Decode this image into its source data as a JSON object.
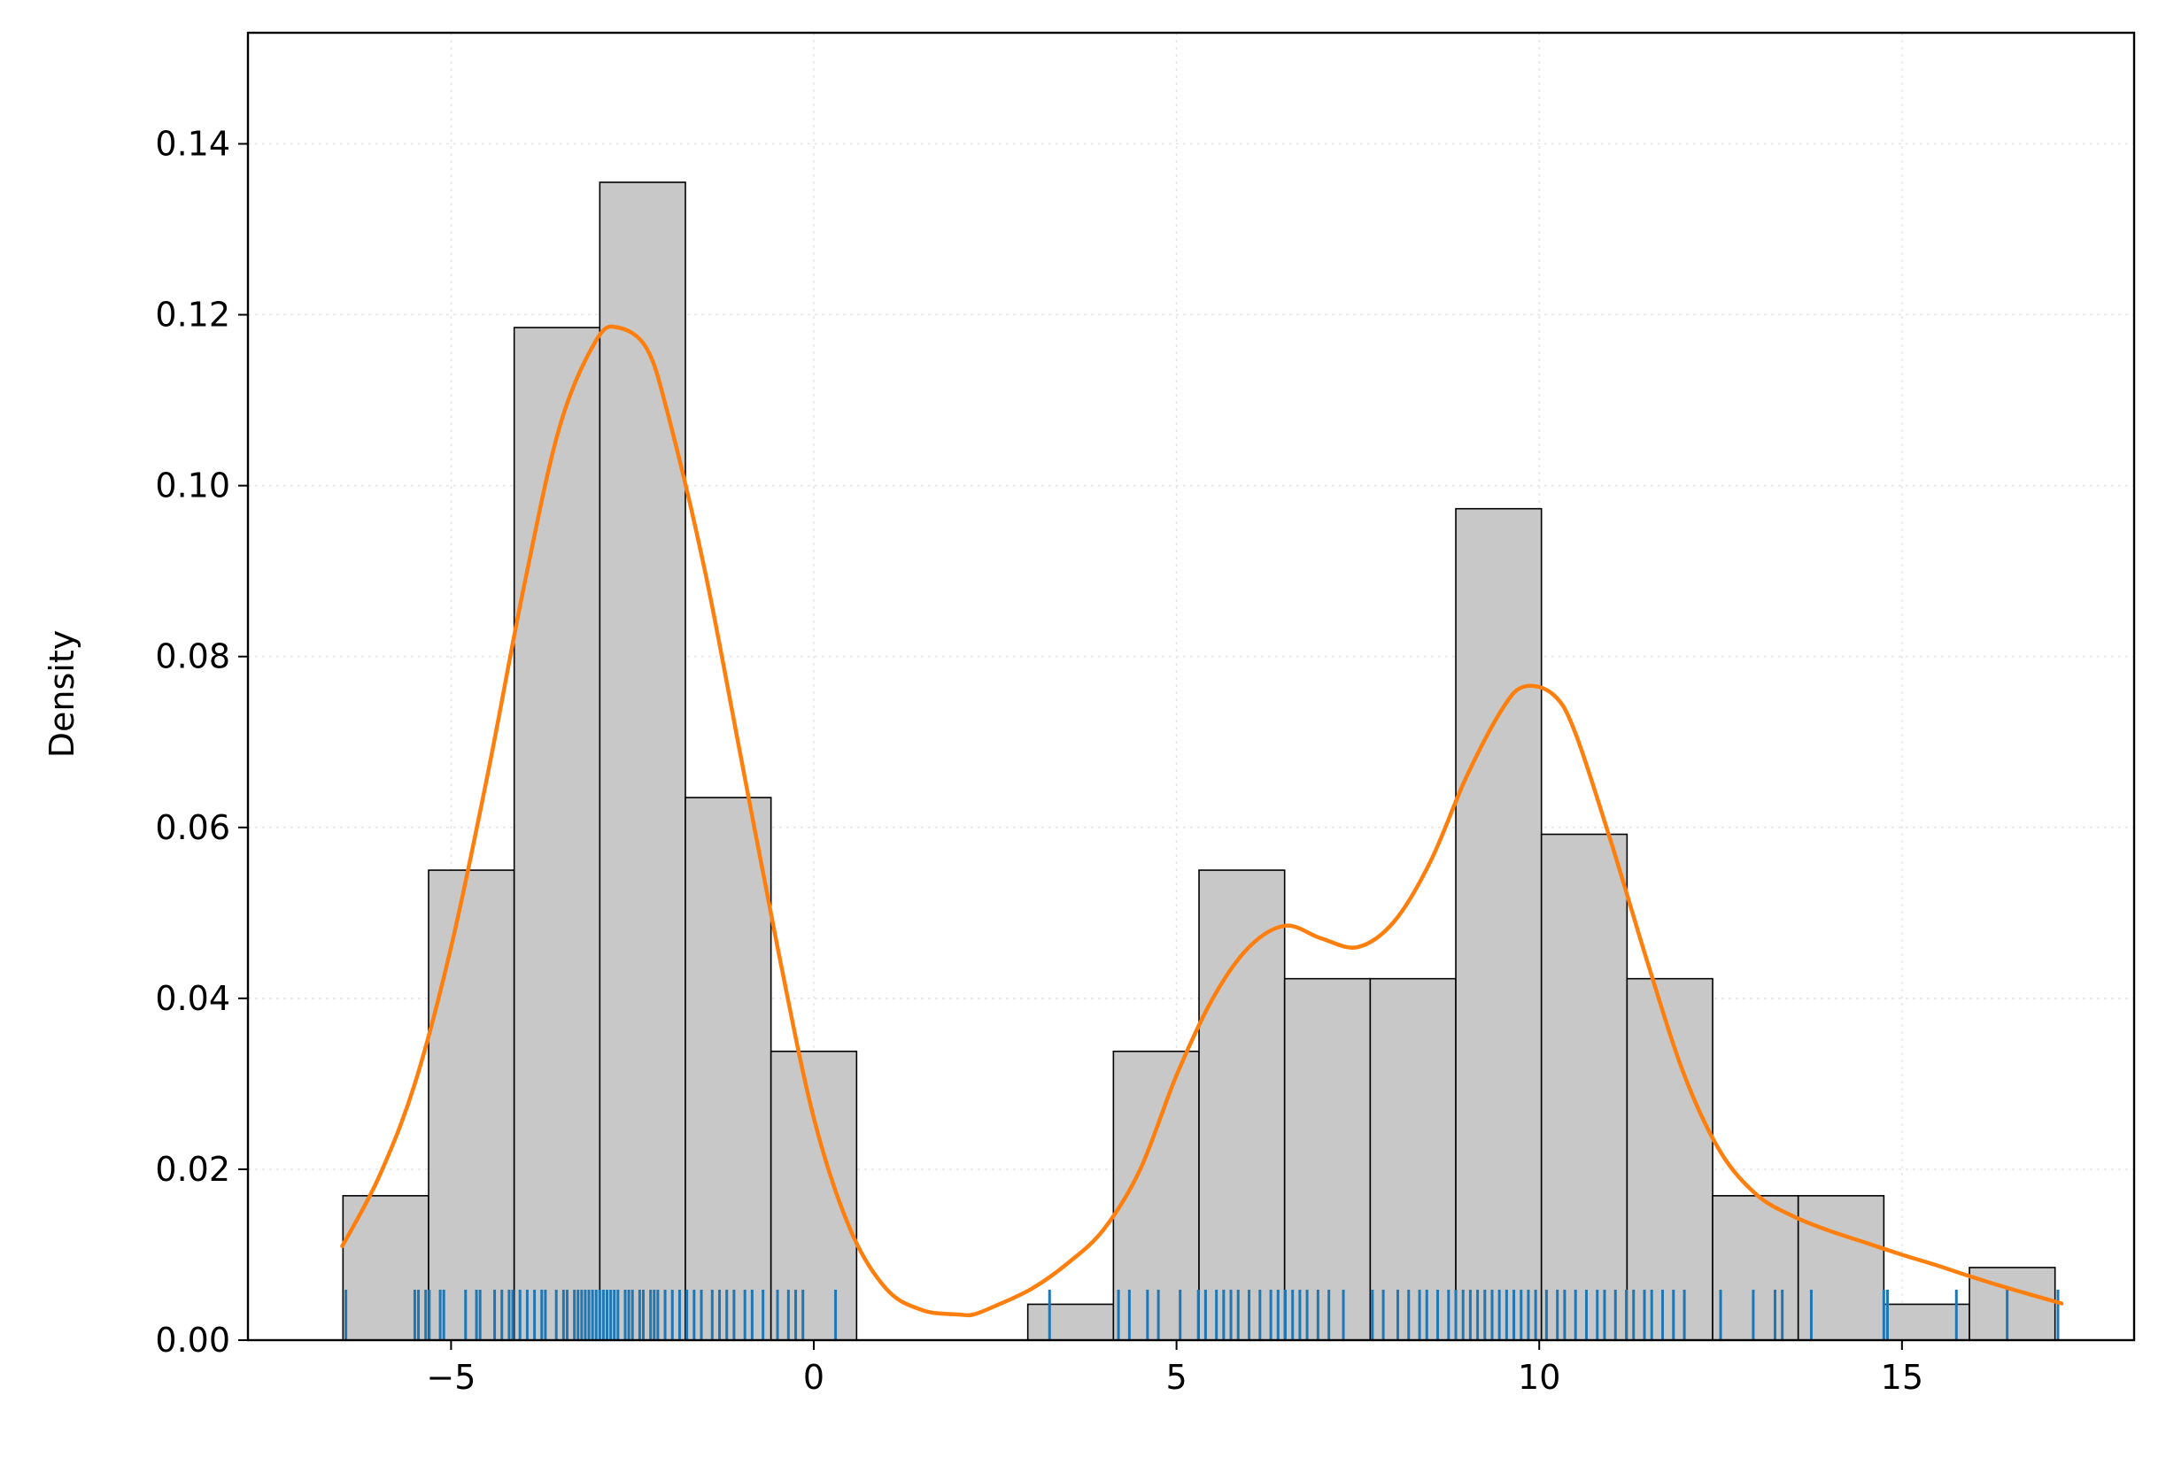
{
  "chart_data": {
    "type": "histogram",
    "title": "",
    "xlabel": "",
    "ylabel": "Density",
    "xlim": [
      -7.8,
      18.2
    ],
    "ylim": [
      0,
      0.153
    ],
    "grid": true,
    "xticks": [
      -5,
      0,
      5,
      10,
      15
    ],
    "xtick_labels": [
      "−5",
      "0",
      "5",
      "10",
      "15"
    ],
    "yticks": [
      0.0,
      0.02,
      0.04,
      0.06,
      0.08,
      0.1,
      0.12,
      0.14
    ],
    "ytick_labels": [
      "0.00",
      "0.02",
      "0.04",
      "0.06",
      "0.08",
      "0.10",
      "0.12",
      "0.14"
    ],
    "bins": [
      {
        "x0": -6.49,
        "x1": -5.31,
        "density": 0.0169
      },
      {
        "x0": -5.31,
        "x1": -4.13,
        "density": 0.055
      },
      {
        "x0": -4.13,
        "x1": -2.95,
        "density": 0.1185
      },
      {
        "x0": -2.95,
        "x1": -1.77,
        "density": 0.1355
      },
      {
        "x0": -1.77,
        "x1": -0.59,
        "density": 0.0635
      },
      {
        "x0": -0.59,
        "x1": 0.59,
        "density": 0.0338
      },
      {
        "x0": 2.95,
        "x1": 4.13,
        "density": 0.0042
      },
      {
        "x0": 4.13,
        "x1": 5.31,
        "density": 0.0338
      },
      {
        "x0": 5.31,
        "x1": 6.49,
        "density": 0.055
      },
      {
        "x0": 6.49,
        "x1": 7.67,
        "density": 0.0423
      },
      {
        "x0": 7.67,
        "x1": 8.85,
        "density": 0.0423
      },
      {
        "x0": 8.85,
        "x1": 10.03,
        "density": 0.0973
      },
      {
        "x0": 10.03,
        "x1": 11.21,
        "density": 0.0592
      },
      {
        "x0": 11.21,
        "x1": 12.39,
        "density": 0.0423
      },
      {
        "x0": 12.39,
        "x1": 13.57,
        "density": 0.0169
      },
      {
        "x0": 13.57,
        "x1": 14.75,
        "density": 0.0169
      },
      {
        "x0": 14.75,
        "x1": 15.93,
        "density": 0.0042
      },
      {
        "x0": 15.93,
        "x1": 17.11,
        "density": 0.0085
      }
    ],
    "kde": {
      "x": [
        -6.5,
        -6.0,
        -5.5,
        -5.0,
        -4.5,
        -4.0,
        -3.5,
        -3.0,
        -2.7,
        -2.3,
        -2.0,
        -1.5,
        -1.0,
        -0.5,
        0.0,
        0.5,
        1.0,
        1.5,
        2.0,
        2.2,
        2.5,
        3.0,
        3.5,
        4.0,
        4.5,
        5.0,
        5.5,
        6.0,
        6.5,
        7.0,
        7.5,
        8.0,
        8.5,
        9.0,
        9.5,
        9.8,
        10.2,
        10.5,
        11.0,
        11.5,
        12.0,
        12.5,
        13.0,
        13.5,
        14.0,
        14.5,
        15.0,
        15.5,
        16.0,
        16.5,
        17.2
      ],
      "y": [
        0.011,
        0.019,
        0.03,
        0.046,
        0.066,
        0.088,
        0.107,
        0.117,
        0.1185,
        0.116,
        0.108,
        0.09,
        0.068,
        0.046,
        0.026,
        0.013,
        0.006,
        0.0035,
        0.003,
        0.003,
        0.004,
        0.006,
        0.009,
        0.013,
        0.02,
        0.031,
        0.04,
        0.046,
        0.0485,
        0.047,
        0.046,
        0.049,
        0.056,
        0.066,
        0.074,
        0.0765,
        0.0755,
        0.071,
        0.058,
        0.044,
        0.031,
        0.022,
        0.017,
        0.0145,
        0.0128,
        0.0114,
        0.01,
        0.0087,
        0.0073,
        0.006,
        0.0043
      ],
      "color": "#ff7f0e"
    },
    "rug": {
      "color": "#1f77b4",
      "values": [
        -6.45,
        -5.5,
        -5.45,
        -5.35,
        -5.3,
        -5.15,
        -5.1,
        -4.8,
        -4.65,
        -4.6,
        -4.4,
        -4.3,
        -4.2,
        -4.15,
        -4.05,
        -3.95,
        -3.85,
        -3.75,
        -3.7,
        -3.55,
        -3.45,
        -3.4,
        -3.3,
        -3.25,
        -3.2,
        -3.15,
        -3.1,
        -3.05,
        -3.0,
        -2.95,
        -2.9,
        -2.85,
        -2.8,
        -2.75,
        -2.7,
        -2.6,
        -2.55,
        -2.5,
        -2.4,
        -2.35,
        -2.25,
        -2.2,
        -2.15,
        -2.05,
        -1.95,
        -1.85,
        -1.75,
        -1.65,
        -1.55,
        -1.4,
        -1.3,
        -1.2,
        -1.1,
        -0.95,
        -0.85,
        -0.7,
        -0.5,
        -0.35,
        -0.25,
        -0.15,
        0.3,
        3.25,
        4.2,
        4.35,
        4.6,
        4.75,
        5.05,
        5.3,
        5.4,
        5.55,
        5.65,
        5.75,
        5.85,
        6.0,
        6.15,
        6.3,
        6.4,
        6.5,
        6.6,
        6.7,
        6.8,
        6.95,
        7.1,
        7.3,
        7.7,
        7.85,
        8.05,
        8.2,
        8.35,
        8.45,
        8.6,
        8.75,
        8.85,
        8.95,
        9.05,
        9.15,
        9.25,
        9.35,
        9.45,
        9.55,
        9.65,
        9.75,
        9.85,
        9.95,
        10.1,
        10.25,
        10.35,
        10.5,
        10.65,
        10.8,
        10.9,
        11.05,
        11.2,
        11.3,
        11.45,
        11.55,
        11.7,
        11.85,
        12.0,
        12.5,
        12.95,
        13.25,
        13.35,
        13.75,
        14.75,
        14.8,
        15.75,
        16.45,
        17.15
      ]
    }
  }
}
